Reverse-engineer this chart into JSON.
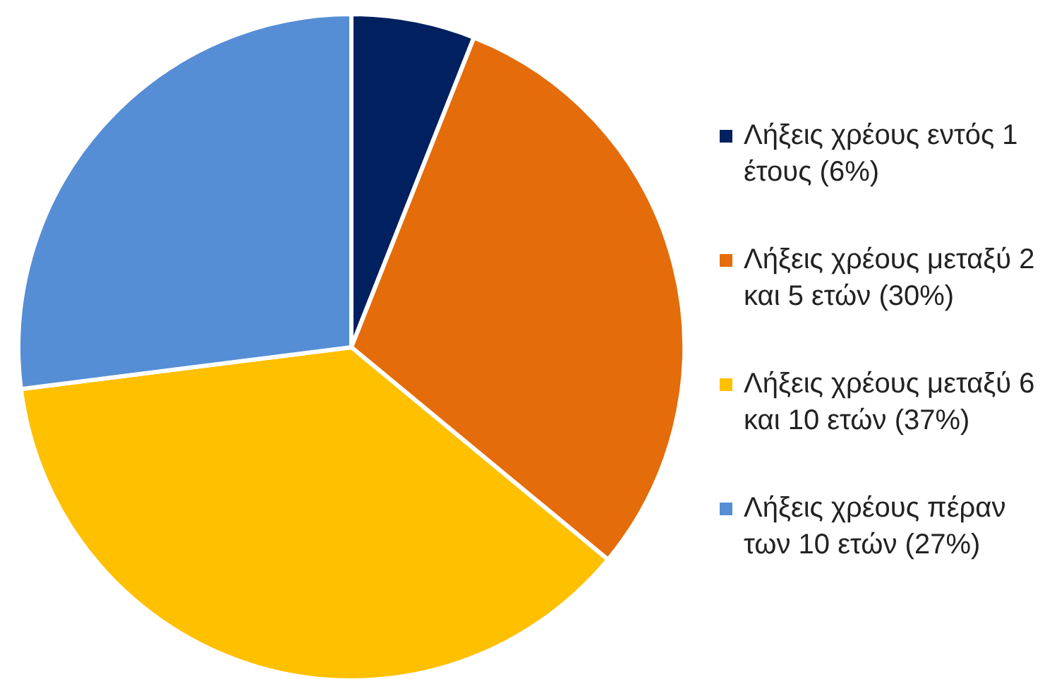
{
  "chart_data": {
    "type": "pie",
    "categories": [
      "Λήξεις χρέους εντός 1 έτους (6%)",
      "Λήξεις χρέους μεταξύ 2 και 5 ετών (30%)",
      "Λήξεις χρέους μεταξύ 6 και 10 ετών (37%)",
      "Λήξεις χρέους πέραν των 10 ετών (27%)"
    ],
    "values": [
      6,
      30,
      37,
      27
    ],
    "colors": [
      "#002060",
      "#e46c0a",
      "#ffc000",
      "#558ed5"
    ],
    "legend": "right"
  }
}
